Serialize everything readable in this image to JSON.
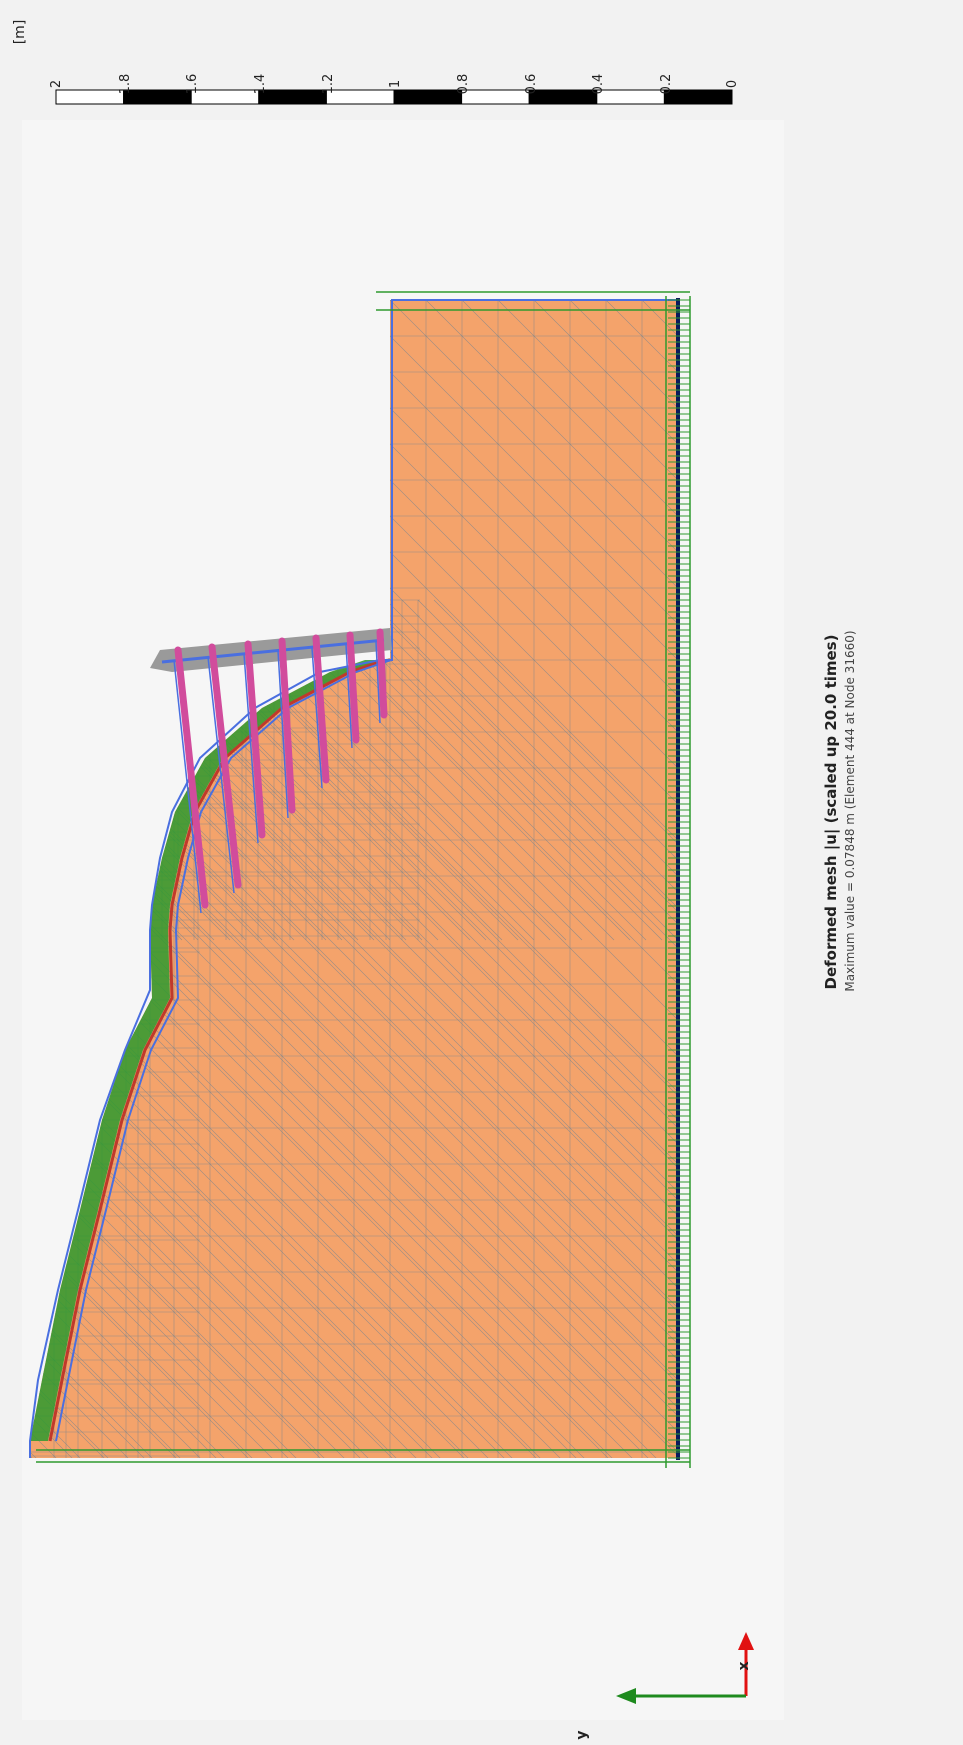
{
  "window": {
    "unit_label": "[m]",
    "scale_ticks": [
      "2",
      "1.8",
      "1.6",
      "1.4",
      "1.2",
      "1",
      "0.8",
      "0.6",
      "0.4",
      "0.2",
      "0"
    ]
  },
  "plot": {
    "title": "Deformed mesh |u| (scaled up 20.0 times)",
    "subtitle": "Maximum value = 0.07848 m (Element 444 at Node 31660)",
    "axes": {
      "x_label": "x",
      "y_label": "y"
    },
    "soil_anchor_count": 7,
    "colors": {
      "background": "#f2f2f2",
      "plot_area": "#f6f6f6",
      "soil": "#f4a36b",
      "mesh_line": "#8a8a8a",
      "green_layer": "#2e9a2e",
      "red_layer": "#c0392b",
      "outline_blue": "#4a6fe0",
      "anchor_pink": "#d14c9c",
      "axis_x": "#e11212",
      "axis_y": "#1e8a1e"
    }
  }
}
